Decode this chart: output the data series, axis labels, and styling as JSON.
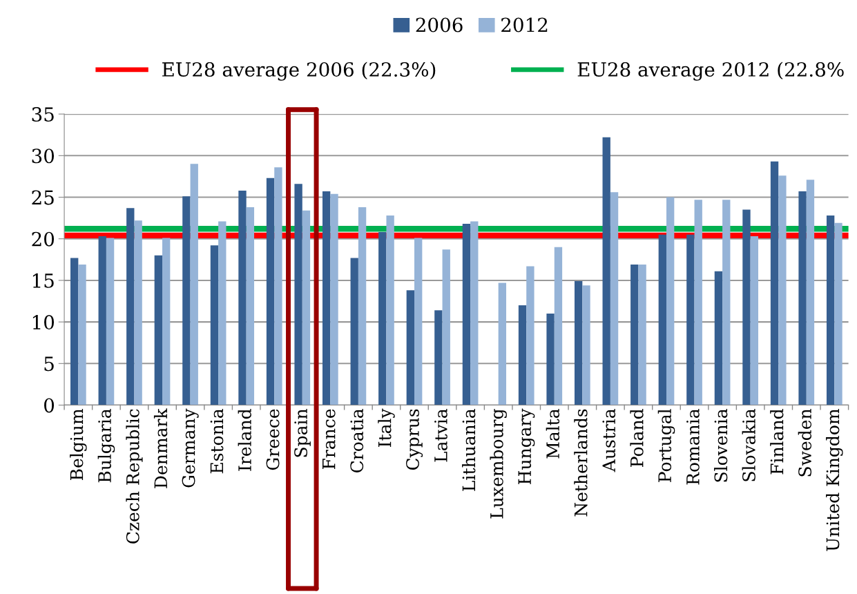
{
  "chart_data": {
    "type": "bar",
    "categories": [
      "Belgium",
      "Bulgaria",
      "Czech Republic",
      "Denmark",
      "Germany",
      "Estonia",
      "Ireland",
      "Greece",
      "Spain",
      "France",
      "Croatia",
      "Italy",
      "Cyprus",
      "Latvia",
      "Lithuania",
      "Luxembourg",
      "Hungary",
      "Malta",
      "Netherlands",
      "Austria",
      "Poland",
      "Portugal",
      "Romania",
      "Slovenia",
      "Slovakia",
      "Finland",
      "Sweden",
      "United Kingdom"
    ],
    "series": [
      {
        "name": "2006",
        "color": "#365f91",
        "values": [
          17.7,
          20.3,
          23.7,
          18.0,
          25.1,
          19.2,
          25.8,
          27.3,
          26.6,
          25.7,
          17.7,
          20.8,
          13.8,
          11.4,
          21.8,
          null,
          12.0,
          11.0,
          14.9,
          32.2,
          16.9,
          20.5,
          20.5,
          16.1,
          23.5,
          29.3,
          25.7,
          22.8
        ]
      },
      {
        "name": "2012",
        "color": "#95b3d7",
        "values": [
          16.9,
          20.1,
          22.2,
          20.1,
          29.0,
          22.1,
          23.8,
          28.6,
          23.4,
          25.4,
          23.8,
          22.8,
          20.1,
          18.7,
          22.1,
          14.7,
          16.7,
          19.0,
          14.4,
          25.6,
          16.9,
          25.0,
          24.7,
          24.7,
          20.3,
          27.6,
          27.1,
          21.9
        ]
      }
    ],
    "ref_lines": [
      {
        "axis": "y",
        "value": 20.4,
        "label": "EU28 average 2006 (22.3%)",
        "color": "#ff0000"
      },
      {
        "axis": "y",
        "value": 21.2,
        "label": "EU28 average 2012 (22.8%",
        "color": "#00b050"
      }
    ],
    "ylim": [
      0,
      35
    ],
    "yticks": [
      0,
      5,
      10,
      15,
      20,
      25,
      30,
      35
    ],
    "grid": "y",
    "legend": "top"
  }
}
